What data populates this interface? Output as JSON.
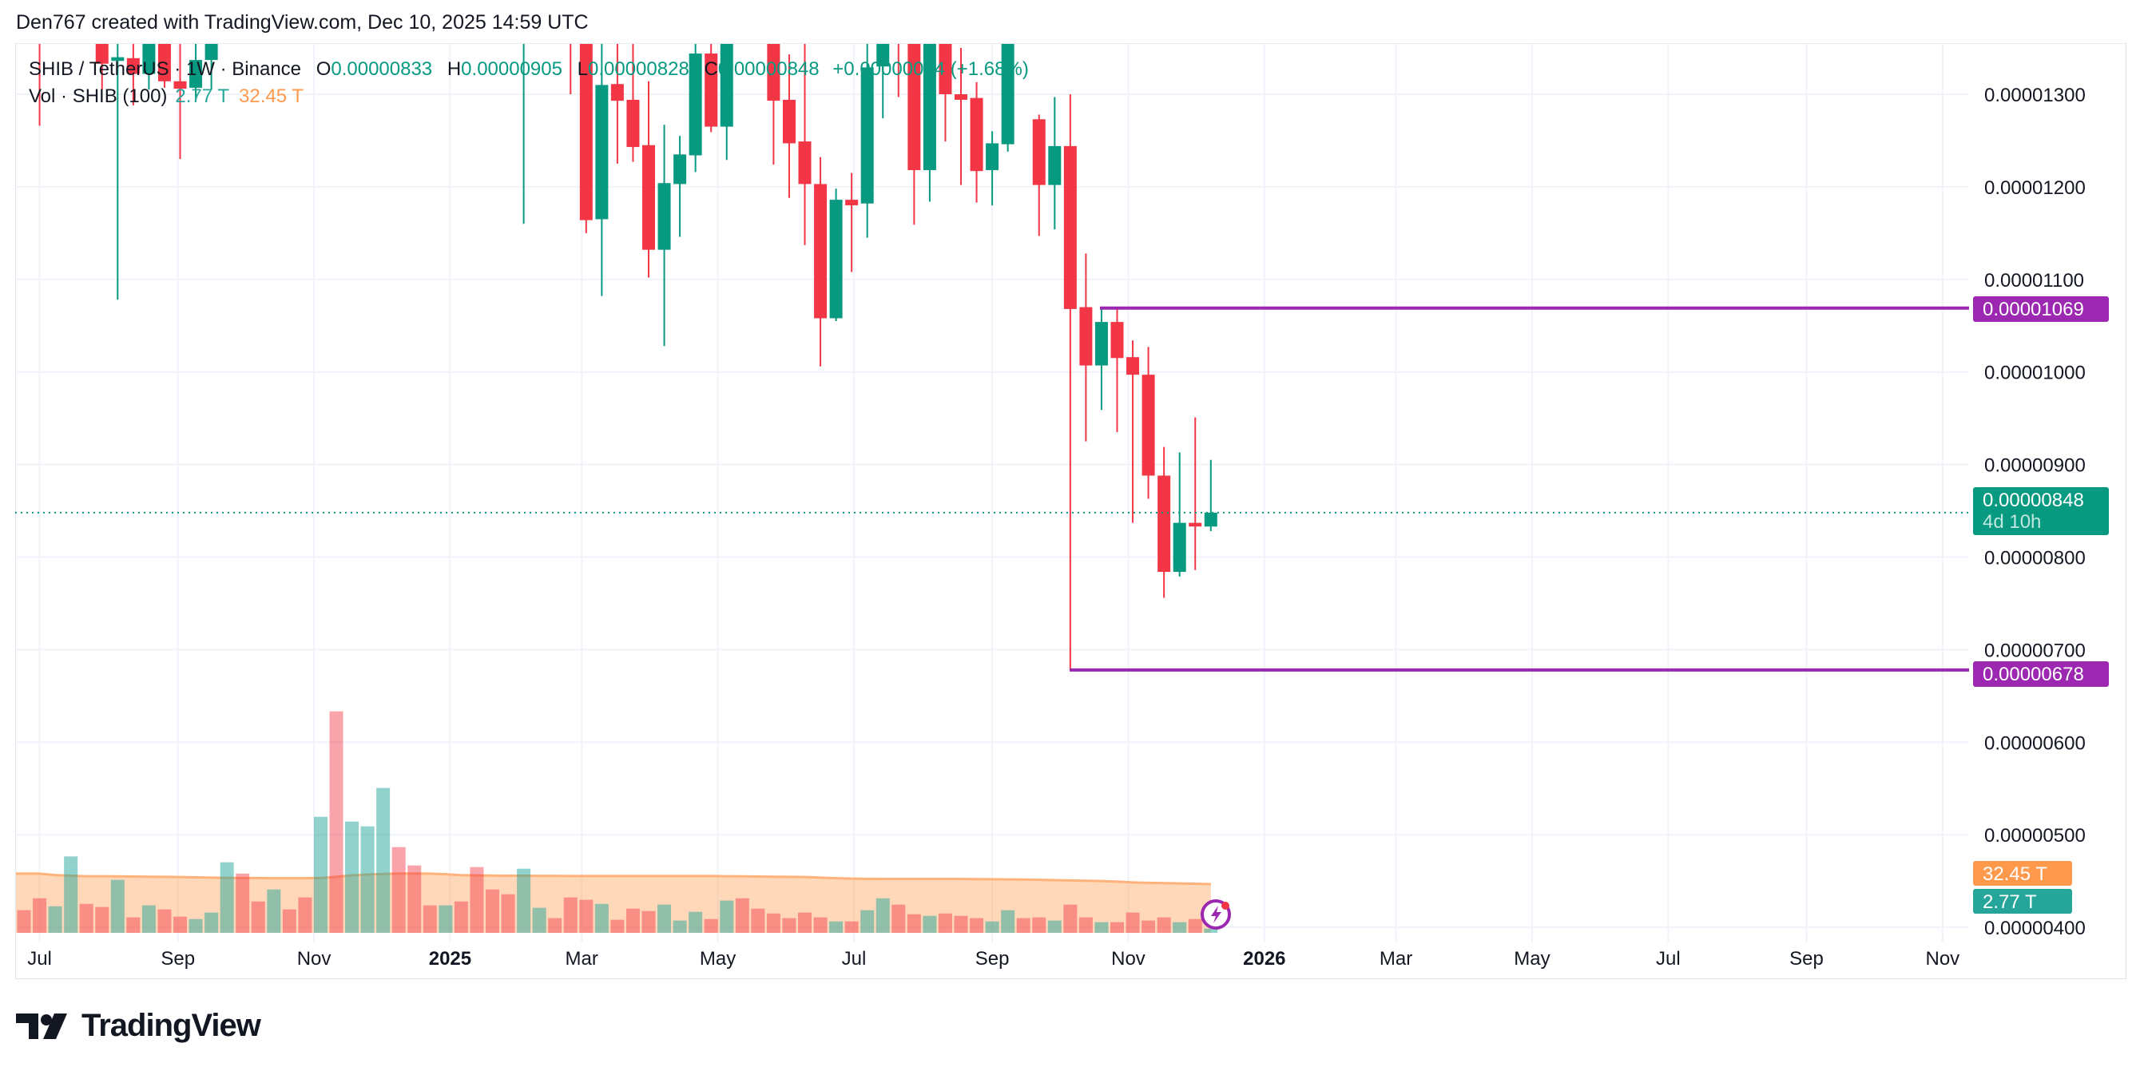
{
  "credit": "Den767 created with TradingView.com, Dec 10, 2025 14:59 UTC",
  "legend": {
    "symbol": "SHIB / TetherUS · 1W · Binance",
    "o_label": "O",
    "o": "0.00000833",
    "h_label": "H",
    "h": "0.00000905",
    "l_label": "L",
    "l": "0.00000828",
    "c_label": "C",
    "c": "0.00000848",
    "change": "+0.00000014 (+1.68%)",
    "vol_label": "Vol · SHIB (100)",
    "vol_value": "2.77 T",
    "vol_ma_value": "32.45 T"
  },
  "tags": {
    "resistance": "0.00001069",
    "support": "0.00000678",
    "last_price": "0.00000848",
    "countdown": "4d 10h",
    "vol_ma": "32.45 T",
    "vol": "2.77 T"
  },
  "logo_text": "TradingView",
  "colors": {
    "up": "#089981",
    "down": "#f23645",
    "level": "#9c27b0",
    "vol_ma": "#ff9a4d",
    "grid": "#f0f3fa"
  },
  "chart_data": {
    "type": "candlestick",
    "interval": "1W",
    "price_ticks": [
      "0.00001300",
      "0.00001200",
      "0.00001100",
      "0.00001000",
      "0.00000900",
      "0.00000800",
      "0.00000700",
      "0.00000600",
      "0.00000500",
      "0.00000400"
    ],
    "time_ticks": [
      "Jul",
      "Sep",
      "Nov",
      "2025",
      "Mar",
      "May",
      "Jul",
      "Sep",
      "Nov",
      "2026",
      "Mar",
      "May",
      "Jul",
      "Sep",
      "Nov"
    ],
    "horizontal_levels": [
      1.069e-05,
      6.78e-06
    ],
    "last_price": 8.48e-06,
    "candles": [
      {
        "d": "down"
      },
      {
        "d": "down",
        "l": 1.266e-05
      },
      {
        "d": "up"
      },
      {
        "d": "up"
      },
      {
        "d": "down"
      },
      {
        "d": "down",
        "c": 1.333e-05,
        "l": 1.305e-05
      },
      {
        "d": "up",
        "o": 1.336e-05,
        "c": 1.34e-05,
        "l": 1.078e-05
      },
      {
        "d": "down",
        "o": 1.339e-05,
        "c": 1.322e-05,
        "l": 1.288e-05
      },
      {
        "d": "up",
        "o": 1.322e-05,
        "l": 1.305e-05
      },
      {
        "d": "down",
        "c": 1.314e-05,
        "l": 1.307e-05
      },
      {
        "d": "down",
        "o": 1.314e-05,
        "c": 1.306e-05,
        "l": 1.23e-05
      },
      {
        "d": "up",
        "o": 1.307e-05,
        "c": 1.337e-05,
        "l": 1.295e-05
      },
      {
        "d": "up",
        "o": 1.337e-05,
        "l": 1.305e-05
      },
      {
        "d": "up"
      },
      {
        "d": "down"
      },
      {
        "d": "down"
      },
      {
        "d": "up"
      },
      {
        "d": "down"
      },
      {
        "d": "down"
      },
      {
        "d": "up"
      },
      {
        "d": "down"
      },
      {
        "d": "up"
      },
      {
        "d": "up"
      },
      {
        "d": "up"
      },
      {
        "d": "down"
      },
      {
        "d": "down"
      },
      {
        "d": "down"
      },
      {
        "d": "up"
      },
      {
        "d": "down"
      },
      {
        "d": "down"
      },
      {
        "d": "down"
      },
      {
        "d": "down"
      },
      {
        "d": "up",
        "l": 1.16e-05
      },
      {
        "d": "up"
      },
      {
        "d": "down"
      },
      {
        "d": "down",
        "l": 1.3e-05
      },
      {
        "d": "down",
        "c": 1.164e-05,
        "l": 1.15e-05
      },
      {
        "d": "up",
        "o": 1.165e-05,
        "c": 1.31e-05,
        "l": 1.082e-05
      },
      {
        "d": "down",
        "o": 1.311e-05,
        "c": 1.293e-05,
        "l": 1.225e-05
      },
      {
        "d": "down",
        "o": 1.294e-05,
        "c": 1.243e-05,
        "l": 1.227e-05
      },
      {
        "d": "down",
        "o": 1.245e-05,
        "h": 1.314e-05,
        "c": 1.132e-05,
        "l": 1.102e-05
      },
      {
        "d": "up",
        "o": 1.132e-05,
        "h": 1.267e-05,
        "c": 1.204e-05,
        "l": 1.028e-05
      },
      {
        "d": "up",
        "o": 1.203e-05,
        "h": 1.255e-05,
        "c": 1.235e-05,
        "l": 1.146e-05
      },
      {
        "d": "up",
        "o": 1.234e-05,
        "c": 1.344e-05,
        "l": 1.216e-05
      },
      {
        "d": "down",
        "o": 1.344e-05,
        "c": 1.265e-05,
        "l": 1.259e-05
      },
      {
        "d": "up",
        "o": 1.265e-05,
        "l": 1.229e-05
      },
      {
        "d": "down"
      },
      {
        "d": "down"
      },
      {
        "d": "down",
        "c": 1.293e-05,
        "l": 1.224e-05
      },
      {
        "d": "down",
        "o": 1.294e-05,
        "h": 1.343e-05,
        "c": 1.247e-05,
        "l": 1.188e-05
      },
      {
        "d": "down",
        "o": 1.249e-05,
        "c": 1.203e-05,
        "l": 1.137e-05
      },
      {
        "d": "down",
        "o": 1.203e-05,
        "h": 1.232e-05,
        "c": 1.058e-05,
        "l": 1.006e-05
      },
      {
        "d": "up",
        "o": 1.058e-05,
        "h": 1.198e-05,
        "c": 1.186e-05,
        "l": 1.055e-05
      },
      {
        "d": "down",
        "o": 1.186e-05,
        "h": 1.215e-05,
        "c": 1.18e-05,
        "l": 1.108e-05
      },
      {
        "d": "up",
        "o": 1.182e-05,
        "c": 1.329e-05,
        "l": 1.145e-05
      },
      {
        "d": "up",
        "o": 1.33e-05,
        "l": 1.274e-05
      },
      {
        "d": "down",
        "l": 1.297e-05
      },
      {
        "d": "down",
        "c": 1.218e-05,
        "l": 1.159e-05
      },
      {
        "d": "up",
        "o": 1.218e-05,
        "l": 1.184e-05
      },
      {
        "d": "down",
        "c": 1.3e-05,
        "l": 1.249e-05
      },
      {
        "d": "down",
        "o": 1.3e-05,
        "h": 1.35e-05,
        "c": 1.294e-05,
        "l": 1.202e-05
      },
      {
        "d": "down",
        "o": 1.296e-05,
        "h": 1.313e-05,
        "c": 1.217e-05,
        "l": 1.183e-05
      },
      {
        "d": "up",
        "o": 1.218e-05,
        "h": 1.26e-05,
        "c": 1.247e-05,
        "l": 1.18e-05
      },
      {
        "d": "up",
        "o": 1.246e-05,
        "l": 1.238e-05
      },
      {
        "d": "down",
        "c": 1.273e-05
      },
      {
        "d": "down",
        "o": 1.273e-05,
        "h": 1.278e-05,
        "c": 1.202e-05,
        "l": 1.147e-05
      },
      {
        "d": "up",
        "o": 1.202e-05,
        "h": 1.297e-05,
        "c": 1.244e-05,
        "l": 1.154e-05
      },
      {
        "d": "down",
        "o": 1.244e-05,
        "h": 1.3e-05,
        "c": 1.068e-05,
        "l": 6.78e-06
      },
      {
        "d": "down",
        "o": 1.07e-05,
        "h": 1.128e-05,
        "c": 1.007e-05,
        "l": 9.25e-06
      },
      {
        "d": "up",
        "o": 1.007e-05,
        "h": 1.069e-05,
        "c": 1.054e-05,
        "l": 9.59e-06
      },
      {
        "d": "down",
        "o": 1.054e-05,
        "h": 1.069e-05,
        "c": 1.015e-05,
        "l": 9.35e-06
      },
      {
        "d": "down",
        "o": 1.016e-05,
        "h": 1.034e-05,
        "c": 9.97e-06,
        "l": 8.37e-06
      },
      {
        "d": "down",
        "o": 9.97e-06,
        "h": 1.027e-05,
        "c": 8.88e-06,
        "l": 8.63e-06
      },
      {
        "d": "down",
        "o": 8.88e-06,
        "h": 9.19e-06,
        "c": 7.84e-06,
        "l": 7.56e-06
      },
      {
        "d": "up",
        "o": 7.84e-06,
        "h": 9.13e-06,
        "c": 8.37e-06,
        "l": 7.79e-06
      },
      {
        "d": "down",
        "o": 8.37e-06,
        "h": 9.51e-06,
        "c": 8.33e-06,
        "l": 7.86e-06
      },
      {
        "d": "up",
        "o": 8.33e-06,
        "h": 9.05e-06,
        "c": 8.48e-06,
        "l": 8.28e-06
      }
    ],
    "volume_unit": "T",
    "volume": [
      15.1,
      23.0,
      17.7,
      50.9,
      19.3,
      17.2,
      35.3,
      10.3,
      18.3,
      15.6,
      10.8,
      9.2,
      13.5,
      47.0,
      39.5,
      20.9,
      28.9,
      15.6,
      23.6,
      77.3,
      147.5,
      74.1,
      70.9,
      96.5,
      57.1,
      44.9,
      18.3,
      18.3,
      20.9,
      43.8,
      28.9,
      25.7,
      42.7,
      16.7,
      9.8,
      23.6,
      22.0,
      19.3,
      8.7,
      16.1,
      14.5,
      18.8,
      8.2,
      14.0,
      9.2,
      21.5,
      23.0,
      16.1,
      12.9,
      9.8,
      13.5,
      10.3,
      7.6,
      7.6,
      15.1,
      23.0,
      18.8,
      12.4,
      11.3,
      12.9,
      11.3,
      9.8,
      7.6,
      15.1,
      9.8,
      10.3,
      8.2,
      18.8,
      10.3,
      7.1,
      7.1,
      13.5,
      8.2,
      10.3,
      7.1,
      9.2,
      2.77
    ],
    "volume_ma_length": 100,
    "volume_ma": [
      39.4,
      39.4,
      38.5,
      38.0,
      37.7,
      37.7,
      37.6,
      37.5,
      37.4,
      37.3,
      37.2,
      37.0,
      36.8,
      36.6,
      36.5,
      36.5,
      36.4,
      36.4,
      36.4,
      36.6,
      37.3,
      38.3,
      38.8,
      39.2,
      39.5,
      39.5,
      39.4,
      39.0,
      38.4,
      38.2,
      38.1,
      38.0,
      38.0,
      37.9,
      37.9,
      37.8,
      37.8,
      37.8,
      37.8,
      37.8,
      37.8,
      37.8,
      37.8,
      37.8,
      37.8,
      37.7,
      37.6,
      37.5,
      37.4,
      37.3,
      37.2,
      36.8,
      36.4,
      36.1,
      36.0,
      35.9,
      35.9,
      35.9,
      35.9,
      35.9,
      35.9,
      35.8,
      35.7,
      35.6,
      35.5,
      35.3,
      35.1,
      34.9,
      34.7,
      34.5,
      34.1,
      33.6,
      33.3,
      33.1,
      32.9,
      32.7,
      32.45
    ]
  }
}
